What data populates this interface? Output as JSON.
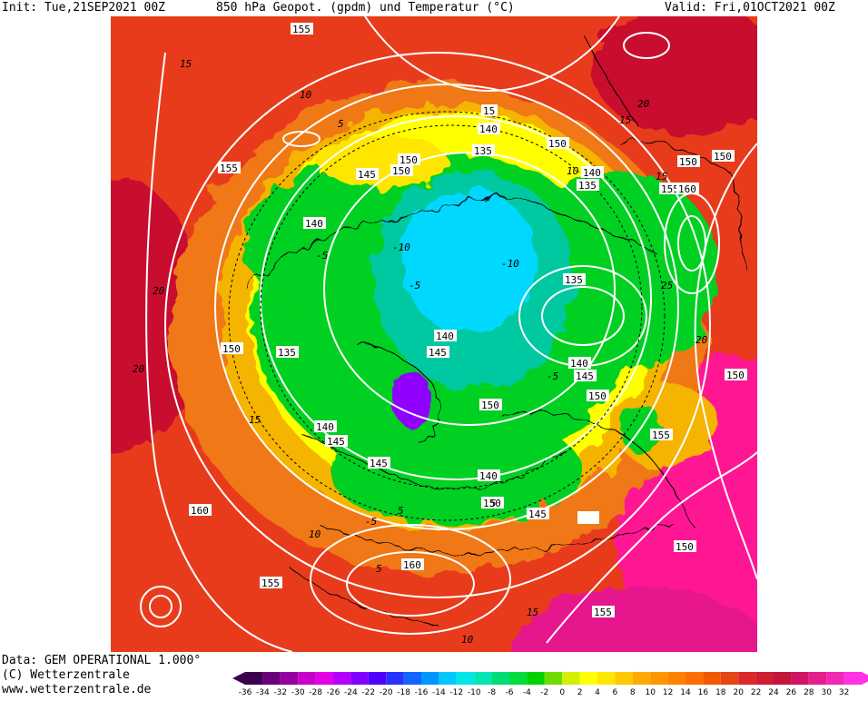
{
  "header": {
    "init": "Init: Tue,21SEP2021 00Z",
    "title": "850 hPa Geopot. (gpdm) und Temperatur (°C)",
    "valid": "Valid: Fri,01OCT2021 00Z"
  },
  "footer": {
    "data_source": "Data: GEM OPERATIONAL 1.000°",
    "copyright": "(C) Wetterzentrale",
    "url": "www.wetterzentrale.de"
  },
  "colors": {
    "hot": "#e8321e",
    "warm": "#f07818",
    "mild": "#f5b400",
    "neutral": "#ffff00",
    "cool": "#00d020",
    "cold": "#00c8a0",
    "colder": "#00d8ff",
    "coldest": "#9000ff",
    "very_hot": "#ff1493",
    "contour_lines": "#ffffff",
    "coastlines": "#000000"
  },
  "geopotential_labels": [
    "155",
    "150",
    "150",
    "140",
    "135",
    "150",
    "140",
    "135",
    "155",
    "160",
    "150",
    "145",
    "150",
    "155",
    "140",
    "135",
    "140",
    "145",
    "150",
    "140",
    "145",
    "150",
    "150",
    "155",
    "135",
    "140",
    "145",
    "150",
    "145",
    "140",
    "145",
    "160",
    "155",
    "160",
    "150",
    "155",
    "150",
    "15"
  ],
  "temperature_labels": [
    "15",
    "10",
    "5",
    "-5",
    "-10",
    "-5",
    "5",
    "10",
    "15",
    "20",
    "20",
    "20",
    "15",
    "15",
    "10",
    "5",
    "-5",
    "5",
    "10",
    "15",
    "20",
    "25",
    "-5",
    "-10"
  ],
  "colorbar": {
    "labels": [
      "-36",
      "-34",
      "-32",
      "-30",
      "-28",
      "-26",
      "-24",
      "-22",
      "-20",
      "-18",
      "-16",
      "-14",
      "-12",
      "-10",
      "-8",
      "-6",
      "-4",
      "-2",
      "0",
      "2",
      "4",
      "6",
      "8",
      "10",
      "12",
      "14",
      "16",
      "18",
      "20",
      "22",
      "24",
      "26",
      "28",
      "30",
      "32"
    ],
    "colors": [
      "#3c0050",
      "#6a007a",
      "#96009e",
      "#c800c8",
      "#e600e6",
      "#b400ff",
      "#8200ff",
      "#5000ff",
      "#2832ff",
      "#1464ff",
      "#0096ff",
      "#00c8ff",
      "#00e6e6",
      "#00e6b4",
      "#00dc78",
      "#00dc3c",
      "#00d200",
      "#6edc00",
      "#d2f000",
      "#ffff00",
      "#ffe600",
      "#ffc800",
      "#ffaa00",
      "#ff9600",
      "#ff8200",
      "#ff6e00",
      "#f05a00",
      "#e64614",
      "#dc2828",
      "#cd1e32",
      "#c3143c",
      "#d21464",
      "#e61e8c",
      "#f028b4",
      "#ff32e6"
    ]
  }
}
